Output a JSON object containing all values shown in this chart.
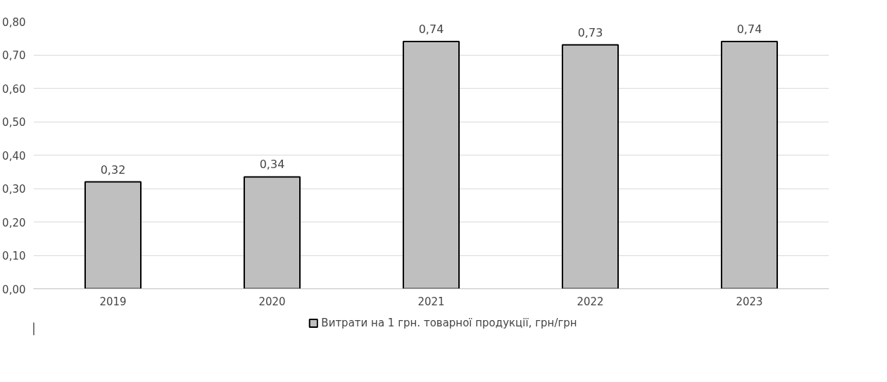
{
  "chart_data": {
    "type": "bar",
    "categories": [
      "2019",
      "2020",
      "2021",
      "2022",
      "2023"
    ],
    "series": [
      {
        "name": "Витрати на 1 грн. товарної продукції, грн/грн",
        "color": "#bfbfbf",
        "values": [
          0.32,
          0.335,
          0.74,
          0.73,
          0.74
        ],
        "value_labels": [
          "0,32",
          "0,34",
          "0,74",
          "0,73",
          "0,74"
        ]
      }
    ],
    "ylim": [
      0,
      0.8
    ],
    "yticks": [
      {
        "value": 0,
        "label": "0,00"
      },
      {
        "value": 0.1,
        "label": "0,10"
      },
      {
        "value": 0.2,
        "label": "0,20"
      },
      {
        "value": 0.3,
        "label": "0,30"
      },
      {
        "value": 0.4,
        "label": "0,40"
      },
      {
        "value": 0.5,
        "label": "0,50"
      },
      {
        "value": 0.6,
        "label": "0,60"
      },
      {
        "value": 0.7,
        "label": "0,70"
      },
      {
        "value": 0.8,
        "label": "0,80"
      }
    ],
    "grid": "y",
    "legend": "bottom"
  }
}
